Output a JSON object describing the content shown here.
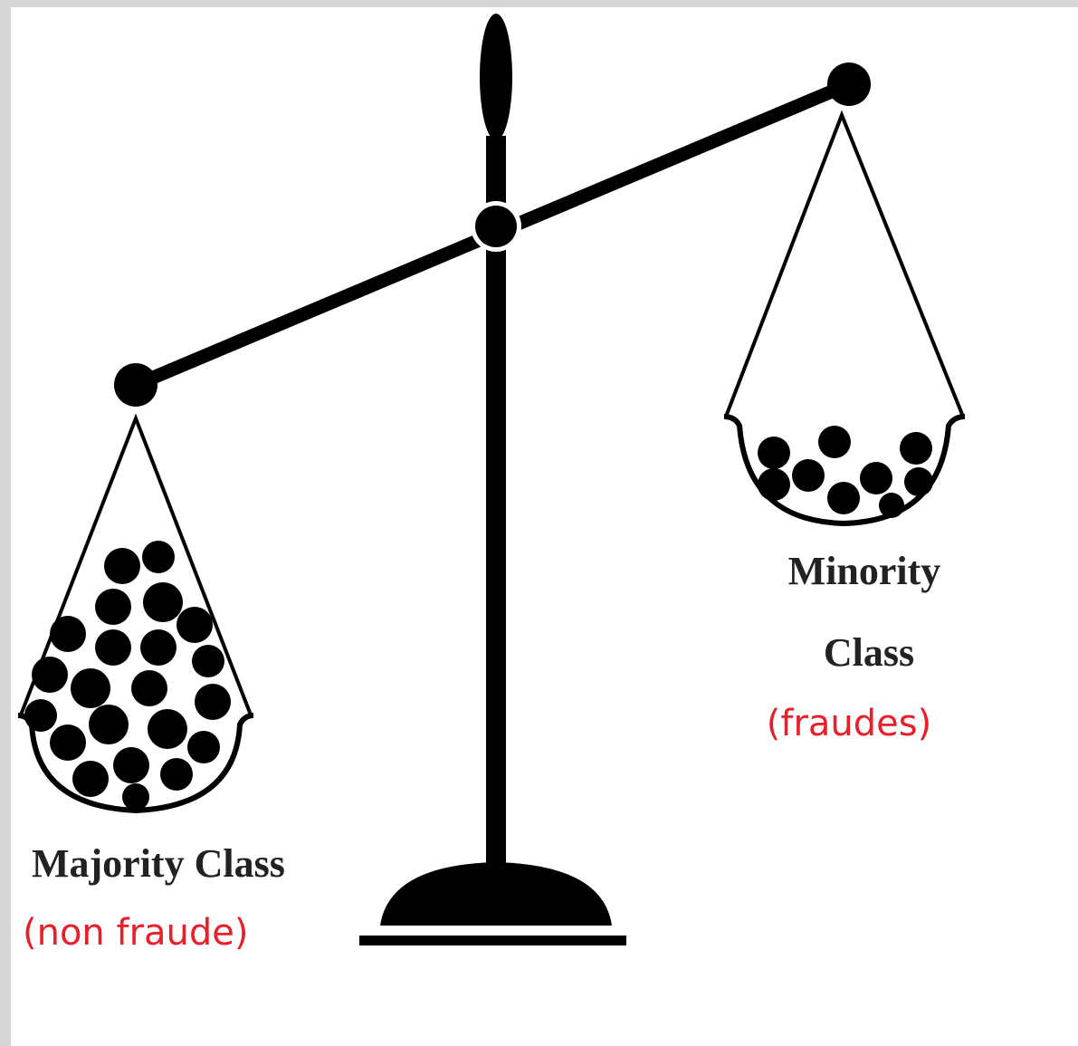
{
  "labels": {
    "minority_line1": "Minority",
    "minority_line2": "Class",
    "minority_note": "(fraudes)",
    "majority": "Majority Class",
    "majority_note": "(non fraude)"
  }
}
